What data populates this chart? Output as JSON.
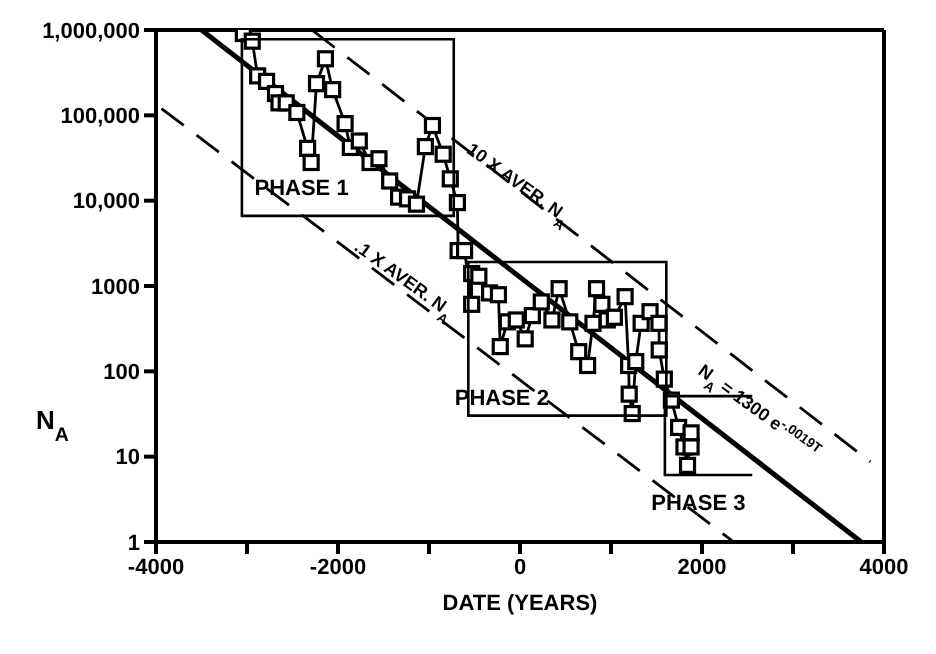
{
  "chart_data": {
    "type": "line",
    "xlabel": "DATE (YEARS)",
    "ylabel": "N$_{A}$",
    "log": "y",
    "grid": false,
    "xlim": [
      -4000,
      4000
    ],
    "xticks": [
      -4000,
      {
        "value": -3000,
        "label": null
      },
      -2000,
      {
        "value": -1000,
        "label": null
      },
      0,
      {
        "value": 1000,
        "label": null
      },
      2000,
      {
        "value": 3000,
        "label": null
      },
      4000
    ],
    "ylim": [
      1,
      1000000
    ],
    "yticks": [
      1,
      10,
      100,
      1000,
      {
        "value": 10000,
        "label": "10,000"
      },
      {
        "value": 100000,
        "label": "100,000"
      },
      {
        "value": 1000000,
        "label": "1,000,000"
      }
    ],
    "series": [
      {
        "color": "#000000",
        "marker": "square",
        "line_style": "solid",
        "x": [
          -3040,
          -2942,
          -2883,
          -2785,
          -2687,
          -2648,
          -2569,
          -2452,
          -2334,
          -2295,
          -2236,
          -2138,
          -2059,
          -1922,
          -1864,
          -1766,
          -1648,
          -1550,
          -1432,
          -1334,
          -1236,
          -1138,
          -1040,
          -962,
          -844,
          -766,
          -688,
          -680,
          -609,
          -531,
          -531,
          -452,
          -334,
          -237,
          -217,
          -139,
          -41,
          57,
          136,
          234,
          351,
          430,
          547,
          645,
          743,
          802,
          841,
          900,
          959,
          1037,
          1155,
          1194,
          1200,
          1233,
          1272,
          1331,
          1429,
          1527,
          1530,
          1586,
          1664,
          1743,
          1802,
          1841,
          1880,
          1880
        ],
        "values": [
          910000,
          740000,
          290000,
          250000,
          180000,
          140000,
          140000,
          108000,
          41000,
          28000,
          235000,
          460000,
          200000,
          80000,
          42000,
          50000,
          28000,
          31000,
          17000,
          11000,
          10500,
          9100,
          43000,
          76000,
          35000,
          18000,
          9500,
          2600,
          2600,
          610,
          1400,
          1300,
          830,
          790,
          195,
          380,
          400,
          240,
          450,
          650,
          400,
          930,
          380,
          170,
          117,
          365,
          930,
          610,
          400,
          430,
          750,
          117,
          54,
          32,
          130,
          365,
          500,
          365,
          178,
          81,
          46,
          22,
          13,
          7.9,
          19,
          13
        ]
      },
      {
        "color": "#000000",
        "marker": "none",
        "line_style": "solid",
        "x": [
          -3500,
          3750
        ],
        "values": [
          1000000,
          1
        ]
      },
      {
        "color": "#000000",
        "marker": "none",
        "line_style": "dashed",
        "x": [
          -2280,
          3850
        ],
        "values": [
          990000,
          8.7
        ]
      },
      {
        "color": "#000000",
        "marker": "none",
        "line_style": "dashed",
        "x": [
          -3940,
          2350
        ],
        "values": [
          120000,
          1
        ]
      }
    ],
    "annotations": [
      "10 X AVER. N$_{A}$",
      ".1 X AVER. N$_{A}$",
      "N$_{A}$ = 1300 e$^{-.0019T}$",
      "PHASE 1",
      "PHASE 2",
      "PHASE 3"
    ]
  }
}
